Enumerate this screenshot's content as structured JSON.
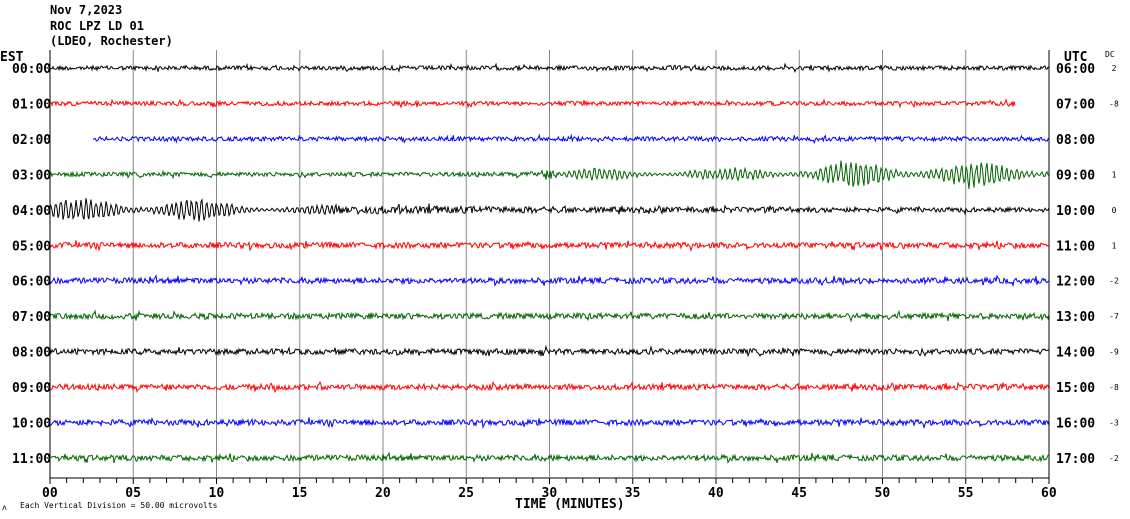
{
  "header": {
    "date": "Nov 7,2023",
    "station": "ROC LPZ LD 01",
    "network": "(LDEO, Rochester)"
  },
  "left_tz": "EST",
  "right_tz": "UTC",
  "dc_label": "DC",
  "footer": {
    "scale_note": "Each Vertical Division =   50.00 microvolts",
    "corner_mark": "ʌ"
  },
  "chart_data": {
    "type": "line",
    "subtype": "helicorder",
    "xlabel": "TIME (MINUTES)",
    "xlim": [
      0,
      60
    ],
    "x_ticks": [
      "00",
      "05",
      "10",
      "15",
      "20",
      "25",
      "30",
      "35",
      "40",
      "45",
      "50",
      "55",
      "60"
    ],
    "minor_tick_interval_min": 1,
    "vertical_division_uV": 50,
    "grid": "vertical every 5 minutes",
    "rows": [
      {
        "est": "00:00",
        "utc": "06:00",
        "dc": "2",
        "color": "#000000",
        "start": 0,
        "end": 60,
        "envelope": [
          [
            0,
            3
          ],
          [
            60,
            3
          ]
        ]
      },
      {
        "est": "01:00",
        "utc": "07:00",
        "dc": "-8",
        "color": "#ff0000",
        "start": 0,
        "end": 58,
        "envelope": [
          [
            0,
            3
          ],
          [
            58,
            3
          ]
        ]
      },
      {
        "est": "02:00",
        "utc": "08:00",
        "dc": "",
        "color": "#0000ff",
        "start": 2.6,
        "end": 60,
        "envelope": [
          [
            2.6,
            3
          ],
          [
            60,
            3
          ]
        ]
      },
      {
        "est": "03:00",
        "utc": "09:00",
        "dc": "1",
        "color": "#006400",
        "start": 0,
        "end": 60,
        "envelope": [
          [
            0,
            3
          ],
          [
            28,
            3
          ],
          [
            30,
            6
          ],
          [
            32,
            10
          ],
          [
            40,
            10
          ],
          [
            44,
            14
          ],
          [
            48,
            22
          ],
          [
            52,
            20
          ],
          [
            56,
            22
          ],
          [
            60,
            20
          ]
        ]
      },
      {
        "est": "04:00",
        "utc": "10:00",
        "dc": "0",
        "color": "#000000",
        "start": 0,
        "end": 60,
        "envelope": [
          [
            0,
            18
          ],
          [
            6,
            20
          ],
          [
            10,
            16
          ],
          [
            14,
            10
          ],
          [
            18,
            6
          ],
          [
            24,
            5
          ],
          [
            35,
            4
          ],
          [
            60,
            3
          ]
        ]
      },
      {
        "est": "05:00",
        "utc": "11:00",
        "dc": "1",
        "color": "#ff0000",
        "start": 0,
        "end": 60,
        "envelope": [
          [
            0,
            4
          ],
          [
            60,
            4
          ]
        ]
      },
      {
        "est": "06:00",
        "utc": "12:00",
        "dc": "-2",
        "color": "#0000ff",
        "start": 0,
        "end": 60,
        "envelope": [
          [
            0,
            4
          ],
          [
            60,
            4
          ]
        ]
      },
      {
        "est": "07:00",
        "utc": "13:00",
        "dc": "-7",
        "color": "#006400",
        "start": 0,
        "end": 60,
        "envelope": [
          [
            0,
            4
          ],
          [
            60,
            4
          ]
        ]
      },
      {
        "est": "08:00",
        "utc": "14:00",
        "dc": "-9",
        "color": "#000000",
        "start": 0,
        "end": 60,
        "envelope": [
          [
            0,
            4
          ],
          [
            60,
            4
          ]
        ]
      },
      {
        "est": "09:00",
        "utc": "15:00",
        "dc": "-8",
        "color": "#ff0000",
        "start": 0,
        "end": 60,
        "envelope": [
          [
            0,
            4
          ],
          [
            60,
            4
          ]
        ]
      },
      {
        "est": "10:00",
        "utc": "16:00",
        "dc": "-3",
        "color": "#0000ff",
        "start": 0,
        "end": 60,
        "envelope": [
          [
            0,
            4
          ],
          [
            60,
            4
          ]
        ]
      },
      {
        "est": "11:00",
        "utc": "17:00",
        "dc": "-2",
        "color": "#006400",
        "start": 0,
        "end": 60,
        "envelope": [
          [
            0,
            4
          ],
          [
            60,
            4
          ]
        ]
      }
    ]
  }
}
